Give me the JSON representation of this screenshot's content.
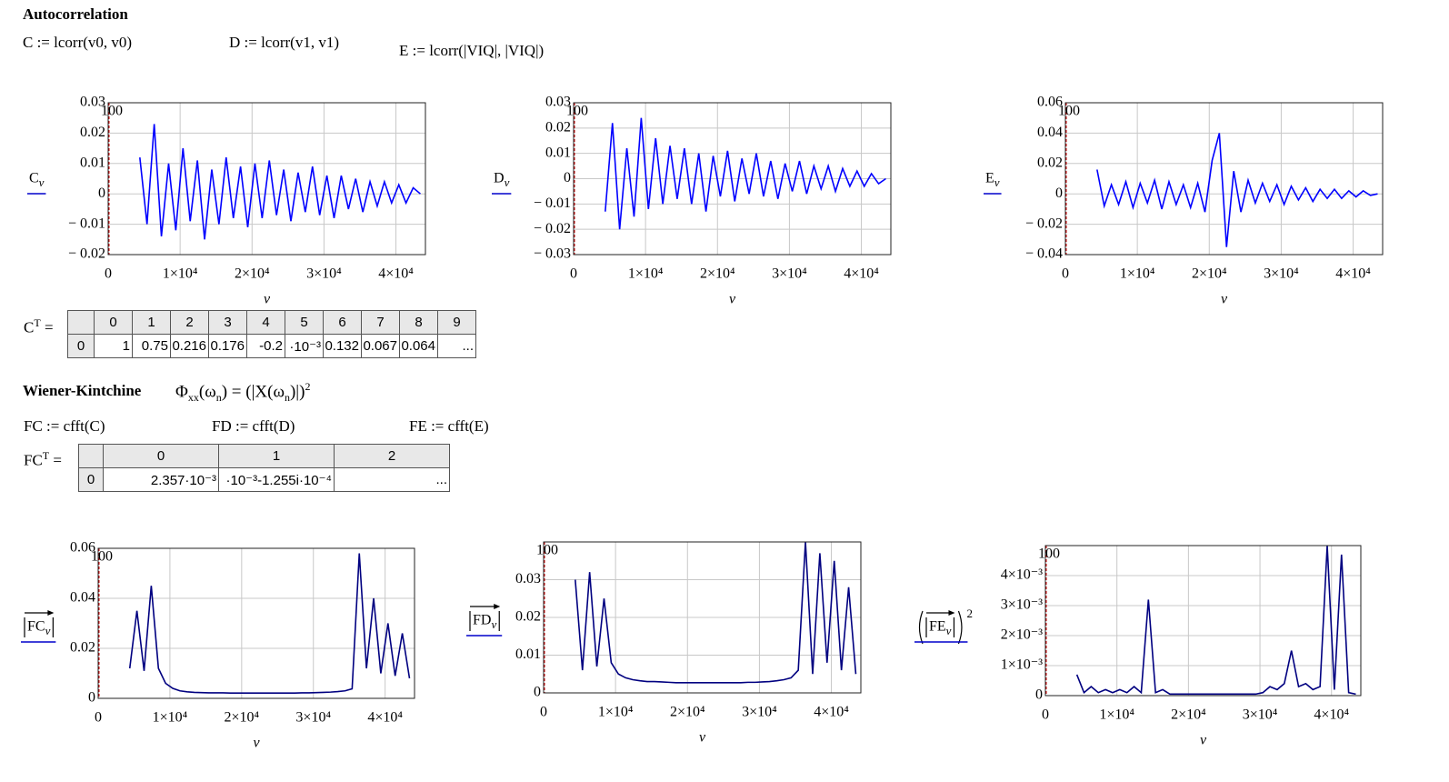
{
  "autocorrelation": {
    "title": "Autocorrelation",
    "definitions": [
      "C := lcorr(v0, v0)",
      "D := lcorr(v1, v1)",
      "E := lcorr(|VIQ|, |VIQ|)"
    ]
  },
  "c_table": {
    "label": "C",
    "superscript": "T",
    "equals": "=",
    "header": [
      "0",
      "1",
      "2",
      "3",
      "4",
      "5",
      "6",
      "7",
      "8",
      "9"
    ],
    "row_label": "0",
    "row": [
      "1",
      "0.75",
      "0.216",
      "0.176",
      "-0.2",
      "·10⁻³",
      "0.132",
      "0.067",
      "0.064",
      "..."
    ]
  },
  "wiener": {
    "title": "Wiener-Kintchine",
    "formula": [
      "Φ",
      "xx",
      "(ω",
      "n",
      ") = (|X(ω",
      "n",
      ")|)",
      "2"
    ],
    "definitions": [
      "FC := cfft(C)",
      "FD := cfft(D)",
      "FE := cfft(E)"
    ]
  },
  "fc_table": {
    "label": "FC",
    "superscript": "T",
    "equals": "=",
    "header": [
      "0",
      "1",
      "2"
    ],
    "row_label": "0",
    "row": [
      "2.357·10⁻³",
      "·10⁻³-1.255i·10⁻⁴",
      "..."
    ]
  },
  "plots": [
    {
      "type": "line",
      "y_label": "C",
      "y_label_sub": "ν",
      "x_label": "ν",
      "marker": "100",
      "color": "#0000ff",
      "grid": true,
      "xlim": [
        0,
        44100
      ],
      "xticks": [
        0,
        {
          "value": 10000,
          "label": "1×10⁴"
        },
        {
          "value": 20000,
          "label": "2×10⁴"
        },
        {
          "value": 30000,
          "label": "3×10⁴"
        },
        {
          "value": 40000,
          "label": "4×10⁴"
        }
      ],
      "ylim": [
        -0.02,
        0.03
      ],
      "yticks": [
        {
          "value": -0.02,
          "label": "− 0.02"
        },
        {
          "value": -0.01,
          "label": "− 0.01"
        },
        0,
        0.01,
        0.02,
        0.03
      ],
      "x": [
        4400,
        5400,
        6400,
        7400,
        8400,
        9400,
        10400,
        11400,
        12400,
        13400,
        14400,
        15400,
        16400,
        17400,
        18400,
        19400,
        20400,
        21400,
        22400,
        23400,
        24400,
        25400,
        26400,
        27400,
        28400,
        29400,
        30400,
        31400,
        32400,
        33400,
        34400,
        35400,
        36400,
        37400,
        38400,
        39400,
        40400,
        41400,
        42400,
        43400
      ],
      "values": [
        0.012,
        -0.01,
        0.023,
        -0.014,
        0.01,
        -0.012,
        0.015,
        -0.009,
        0.011,
        -0.015,
        0.008,
        -0.01,
        0.012,
        -0.008,
        0.009,
        -0.011,
        0.01,
        -0.008,
        0.011,
        -0.007,
        0.008,
        -0.009,
        0.007,
        -0.006,
        0.009,
        -0.007,
        0.006,
        -0.008,
        0.006,
        -0.005,
        0.005,
        -0.006,
        0.004,
        -0.004,
        0.004,
        -0.003,
        0.003,
        -0.003,
        0.002,
        0
      ]
    },
    {
      "type": "line",
      "y_label": "D",
      "y_label_sub": "ν",
      "x_label": "ν",
      "marker": "100",
      "color": "#0000ff",
      "grid": true,
      "xlim": [
        0,
        44100
      ],
      "xticks": [
        0,
        {
          "value": 10000,
          "label": "1×10⁴"
        },
        {
          "value": 20000,
          "label": "2×10⁴"
        },
        {
          "value": 30000,
          "label": "3×10⁴"
        },
        {
          "value": 40000,
          "label": "4×10⁴"
        }
      ],
      "ylim": [
        -0.03,
        0.03
      ],
      "yticks": [
        {
          "value": -0.03,
          "label": "− 0.03"
        },
        {
          "value": -0.02,
          "label": "− 0.02"
        },
        {
          "value": -0.01,
          "label": "− 0.01"
        },
        0,
        0.01,
        0.02,
        0.03
      ],
      "x": [
        4400,
        5400,
        6400,
        7400,
        8400,
        9400,
        10400,
        11400,
        12400,
        13400,
        14400,
        15400,
        16400,
        17400,
        18400,
        19400,
        20400,
        21400,
        22400,
        23400,
        24400,
        25400,
        26400,
        27400,
        28400,
        29400,
        30400,
        31400,
        32400,
        33400,
        34400,
        35400,
        36400,
        37400,
        38400,
        39400,
        40400,
        41400,
        42400,
        43400
      ],
      "values": [
        -0.013,
        0.022,
        -0.02,
        0.012,
        -0.015,
        0.024,
        -0.012,
        0.016,
        -0.01,
        0.013,
        -0.008,
        0.012,
        -0.01,
        0.01,
        -0.013,
        0.009,
        -0.007,
        0.011,
        -0.009,
        0.008,
        -0.006,
        0.01,
        -0.007,
        0.007,
        -0.008,
        0.006,
        -0.005,
        0.007,
        -0.006,
        0.005,
        -0.004,
        0.005,
        -0.005,
        0.004,
        -0.003,
        0.003,
        -0.003,
        0.002,
        -0.002,
        0
      ]
    },
    {
      "type": "line",
      "y_label": "E",
      "y_label_sub": "ν",
      "x_label": "ν",
      "marker": "100",
      "color": "#0000ff",
      "grid": true,
      "xlim": [
        0,
        44100
      ],
      "xticks": [
        0,
        {
          "value": 10000,
          "label": "1×10⁴"
        },
        {
          "value": 20000,
          "label": "2×10⁴"
        },
        {
          "value": 30000,
          "label": "3×10⁴"
        },
        {
          "value": 40000,
          "label": "4×10⁴"
        }
      ],
      "ylim": [
        -0.04,
        0.06
      ],
      "yticks": [
        {
          "value": -0.04,
          "label": "− 0.04"
        },
        {
          "value": -0.02,
          "label": "− 0.02"
        },
        0,
        0.02,
        0.04,
        0.06
      ],
      "x": [
        4400,
        5400,
        6400,
        7400,
        8400,
        9400,
        10400,
        11400,
        12400,
        13400,
        14400,
        15400,
        16400,
        17400,
        18400,
        19400,
        20400,
        21400,
        22400,
        23400,
        24400,
        25400,
        26400,
        27400,
        28400,
        29400,
        30400,
        31400,
        32400,
        33400,
        34400,
        35400,
        36400,
        37400,
        38400,
        39400,
        40400,
        41400,
        42400,
        43400
      ],
      "values": [
        0.016,
        -0.008,
        0.006,
        -0.007,
        0.008,
        -0.009,
        0.007,
        -0.006,
        0.009,
        -0.01,
        0.008,
        -0.007,
        0.006,
        -0.009,
        0.007,
        -0.012,
        0.022,
        0.04,
        -0.035,
        0.015,
        -0.012,
        0.009,
        -0.006,
        0.007,
        -0.005,
        0.006,
        -0.007,
        0.005,
        -0.004,
        0.004,
        -0.005,
        0.003,
        -0.003,
        0.003,
        -0.003,
        0.002,
        -0.002,
        0.002,
        -0.001,
        0
      ]
    },
    {
      "type": "line",
      "y_label": "FC",
      "y_label_sub": "ν",
      "x_label": "ν",
      "marker": "100",
      "color": "#000080",
      "grid": true,
      "xlim": [
        0,
        44100
      ],
      "xticks": [
        0,
        {
          "value": 10000,
          "label": "1×10⁴"
        },
        {
          "value": 20000,
          "label": "2×10⁴"
        },
        {
          "value": 30000,
          "label": "3×10⁴"
        },
        {
          "value": 40000,
          "label": "4×10⁴"
        }
      ],
      "ylim": [
        0,
        0.06
      ],
      "yticks": [
        0,
        0.02,
        0.04,
        0.06
      ],
      "x": [
        4400,
        5400,
        6400,
        7400,
        8400,
        9400,
        10400,
        11400,
        12400,
        13400,
        14400,
        15400,
        16400,
        17400,
        18400,
        19400,
        20400,
        21400,
        22400,
        23400,
        24400,
        25400,
        26400,
        27400,
        28400,
        29400,
        30400,
        31400,
        32400,
        33400,
        34400,
        35400,
        36400,
        37400,
        38400,
        39400,
        40400,
        41400,
        42400,
        43400
      ],
      "values": [
        0.012,
        0.035,
        0.011,
        0.045,
        0.012,
        0.006,
        0.004,
        0.003,
        0.0026,
        0.0024,
        0.0023,
        0.0022,
        0.0022,
        0.0022,
        0.0021,
        0.0021,
        0.0021,
        0.0021,
        0.0021,
        0.0021,
        0.0021,
        0.0021,
        0.0021,
        0.0021,
        0.0022,
        0.0022,
        0.0023,
        0.0024,
        0.0025,
        0.0027,
        0.003,
        0.0038,
        0.058,
        0.012,
        0.04,
        0.01,
        0.03,
        0.009,
        0.026,
        0.008
      ]
    },
    {
      "type": "line",
      "y_label": "FD",
      "y_label_sub": "ν",
      "x_label": "ν",
      "marker": "100",
      "color": "#000080",
      "grid": true,
      "xlim": [
        0,
        44100
      ],
      "xticks": [
        0,
        {
          "value": 10000,
          "label": "1×10⁴"
        },
        {
          "value": 20000,
          "label": "2×10⁴"
        },
        {
          "value": 30000,
          "label": "3×10⁴"
        },
        {
          "value": 40000,
          "label": "4×10⁴"
        }
      ],
      "ylim": [
        0,
        0.04
      ],
      "yticks": [
        0,
        0.01,
        0.02,
        0.03
      ],
      "x": [
        4400,
        5400,
        6400,
        7400,
        8400,
        9400,
        10400,
        11400,
        12400,
        13400,
        14400,
        15400,
        16400,
        17400,
        18400,
        19400,
        20400,
        21400,
        22400,
        23400,
        24400,
        25400,
        26400,
        27400,
        28400,
        29400,
        30400,
        31400,
        32400,
        33400,
        34400,
        35400,
        36400,
        37400,
        38400,
        39400,
        40400,
        41400,
        42400,
        43400
      ],
      "values": [
        0.03,
        0.006,
        0.032,
        0.007,
        0.025,
        0.008,
        0.005,
        0.004,
        0.0035,
        0.0032,
        0.003,
        0.003,
        0.0029,
        0.0028,
        0.0027,
        0.0027,
        0.0027,
        0.0027,
        0.0027,
        0.0027,
        0.0027,
        0.0027,
        0.0027,
        0.0027,
        0.0028,
        0.0028,
        0.0029,
        0.003,
        0.0032,
        0.0035,
        0.004,
        0.006,
        0.04,
        0.005,
        0.037,
        0.008,
        0.035,
        0.006,
        0.028,
        0.005
      ]
    },
    {
      "type": "line",
      "y_label": "FE",
      "y_label_sub": "ν",
      "y_label_power": "2",
      "x_label": "ν",
      "marker": "100",
      "color": "#000080",
      "grid": true,
      "xlim": [
        0,
        44100
      ],
      "xticks": [
        0,
        {
          "value": 10000,
          "label": "1×10⁴"
        },
        {
          "value": 20000,
          "label": "2×10⁴"
        },
        {
          "value": 30000,
          "label": "3×10⁴"
        },
        {
          "value": 40000,
          "label": "4×10⁴"
        }
      ],
      "ylim": [
        0,
        0.005
      ],
      "yticks": [
        0,
        {
          "value": 0.001,
          "label": "1×10⁻³"
        },
        {
          "value": 0.002,
          "label": "2×10⁻³"
        },
        {
          "value": 0.003,
          "label": "3×10⁻³"
        },
        {
          "value": 0.004,
          "label": "4×10⁻³"
        }
      ],
      "x": [
        4400,
        5400,
        6400,
        7400,
        8400,
        9400,
        10400,
        11400,
        12400,
        13400,
        14400,
        15400,
        16400,
        17400,
        18400,
        19400,
        20400,
        21400,
        22400,
        23400,
        24400,
        25400,
        26400,
        27400,
        28400,
        29400,
        30400,
        31400,
        32400,
        33400,
        34400,
        35400,
        36400,
        37400,
        38400,
        39400,
        40400,
        41400,
        42400,
        43400
      ],
      "values": [
        0.0007,
        0.0001,
        0.0003,
        0.0001,
        0.0002,
        0.0001,
        0.0002,
        0.0001,
        0.0003,
        0.0001,
        0.0032,
        0.0001,
        0.0002,
        5e-05,
        5e-05,
        5e-05,
        5e-05,
        5e-05,
        5e-05,
        5e-05,
        5e-05,
        5e-05,
        5e-05,
        5e-05,
        5e-05,
        5e-05,
        0.0001,
        0.0003,
        0.0002,
        0.0004,
        0.0015,
        0.0003,
        0.0004,
        0.0002,
        0.0003,
        0.005,
        0.0002,
        0.0047,
        0.0001,
        5e-05
      ]
    }
  ]
}
